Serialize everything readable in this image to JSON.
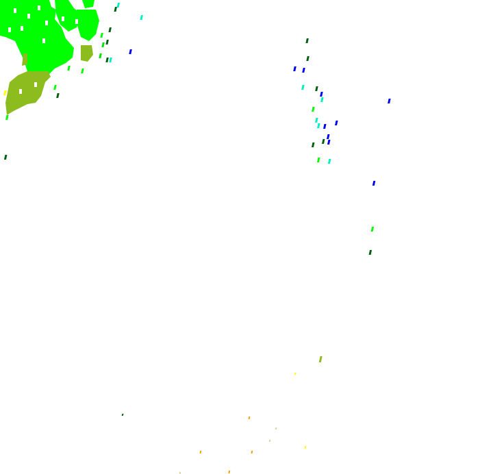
{
  "radar_overlay": {
    "background": "#ffffff",
    "echo_colors": {
      "bright_green": "#00ff00",
      "mid_green": "#00e000",
      "olive": "#8cbc1e",
      "dark_green": "#006010",
      "cyan": "#00f0c0",
      "blue": "#0000f0",
      "yellow": "#ffff00",
      "orange": "#f0a000",
      "light_tan": "#e0d0a0"
    }
  }
}
